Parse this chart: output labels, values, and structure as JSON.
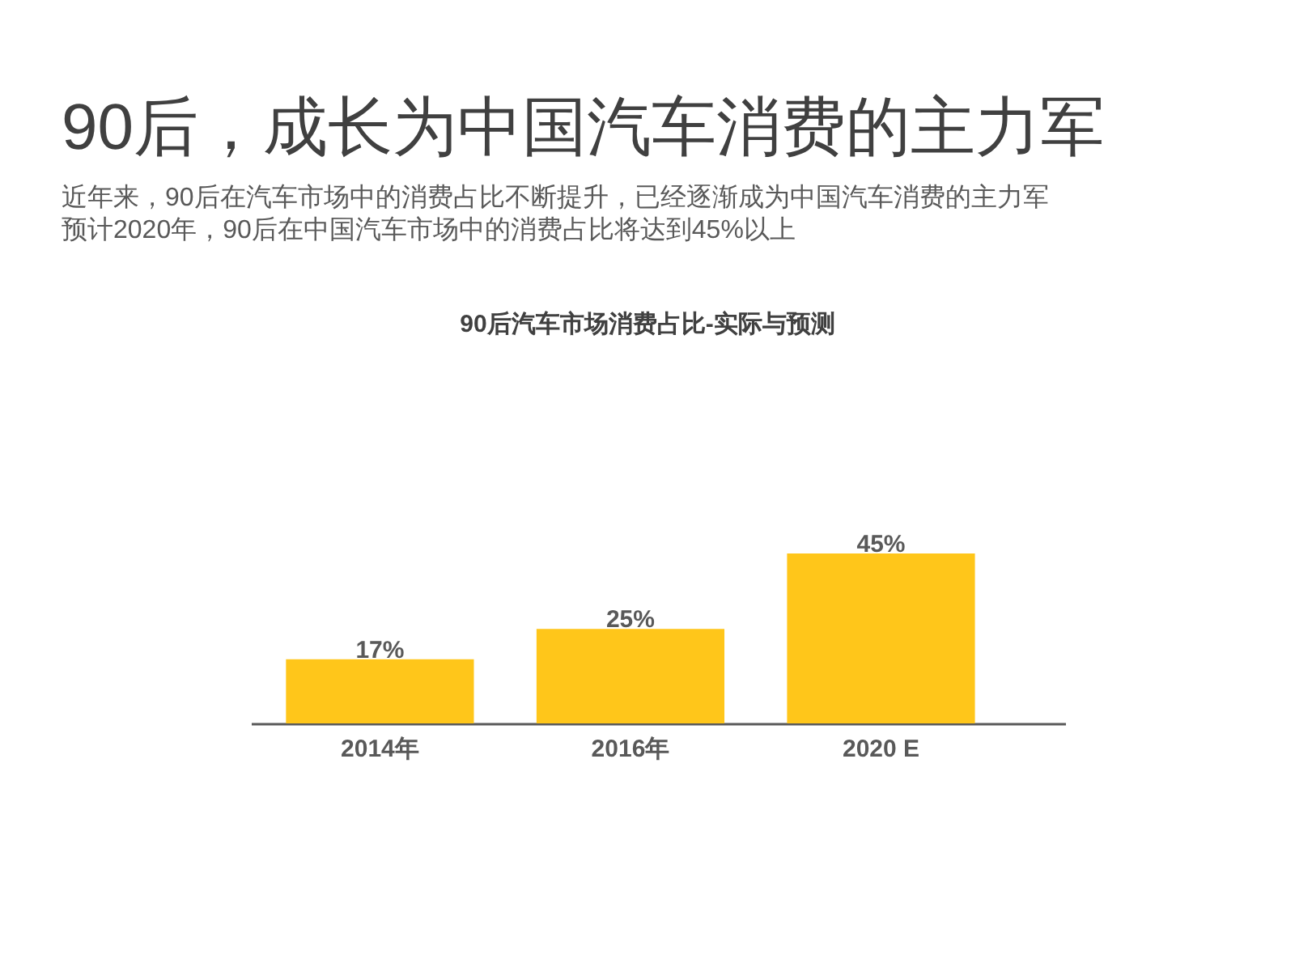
{
  "chart_data": {
    "type": "bar",
    "title": "90后，成长为中国汽车消费的主力军",
    "subtitle": "近年来，90后在汽车市场中的消费占比不断提升，已经逐渐成为中国汽车消费的主力军",
    "annotations": [
      "预计2020年，90后在中国汽车市场中的消费占比将达到45%以上",
      "90后汽车市场消费占比-实际与预测"
    ],
    "categories": [
      "2014年",
      "2016年",
      "2020 E"
    ],
    "values": [
      17,
      25,
      45
    ],
    "color": "#ffc61a",
    "value_labels": [
      "17%",
      "25%",
      "45%"
    ],
    "tick_labels": "x"
  }
}
